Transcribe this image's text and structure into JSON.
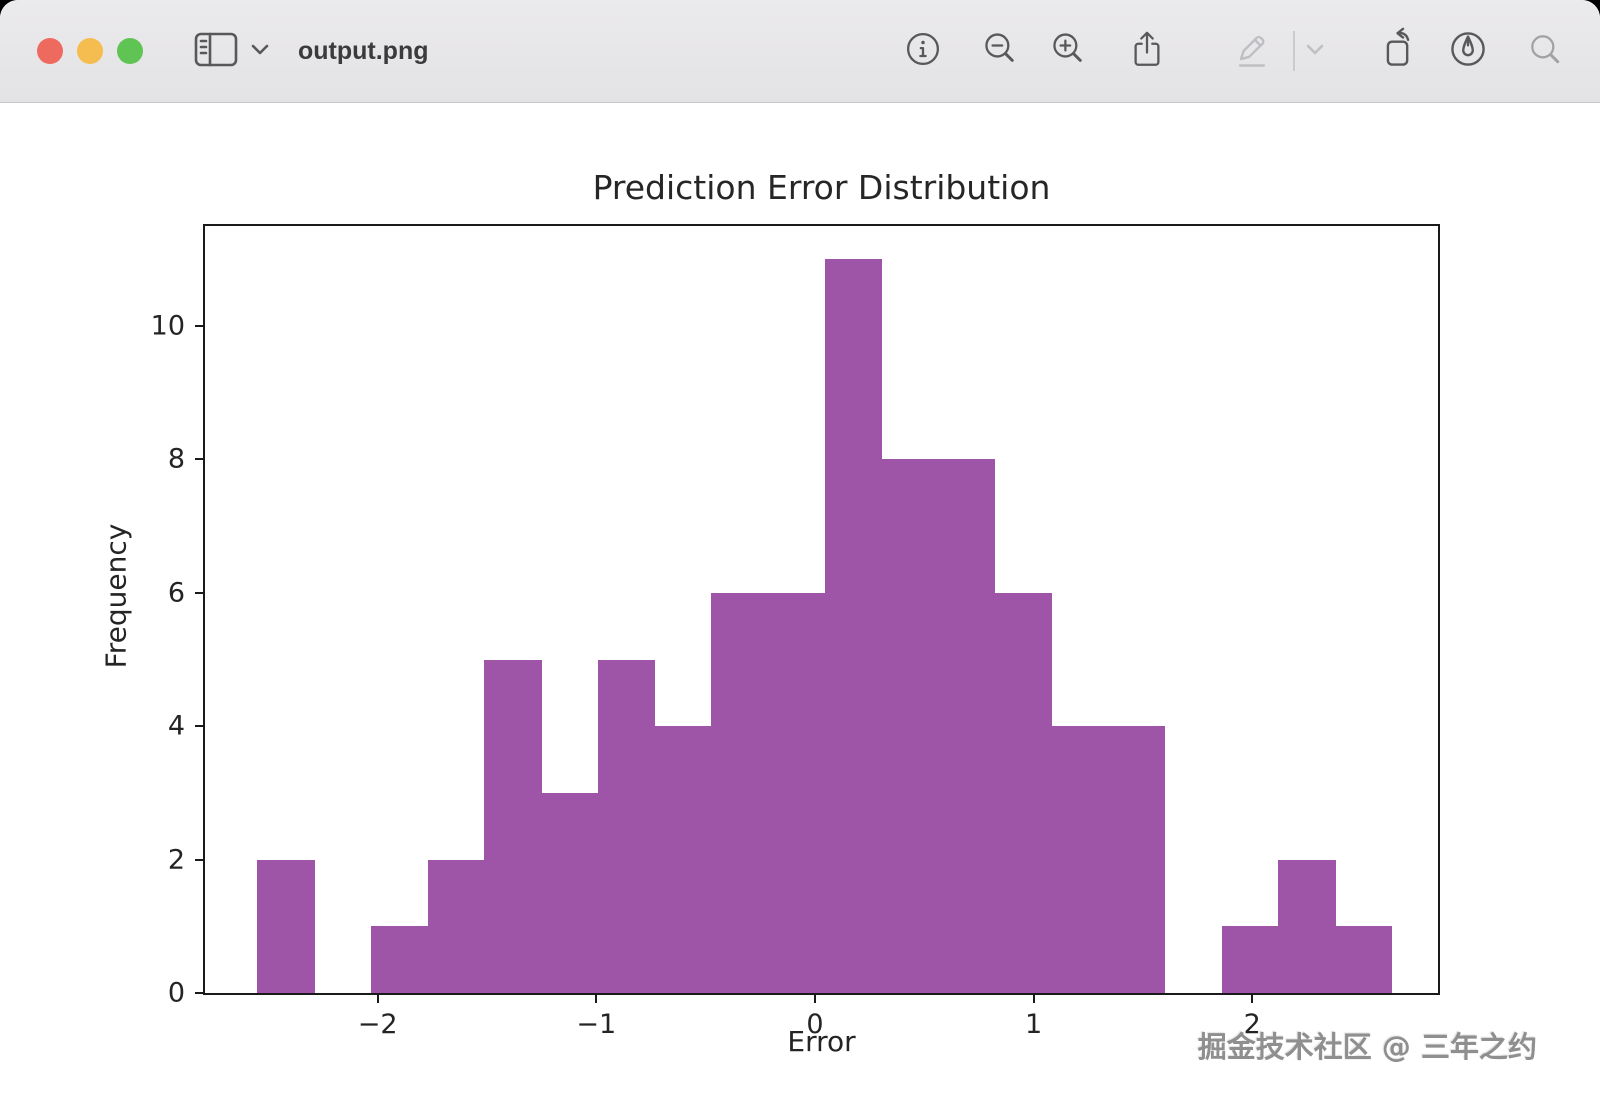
{
  "window": {
    "title": "output.png",
    "traffic_lights": {
      "close": "#ee6a5f",
      "minimize": "#f5bd4f",
      "zoom": "#5fc454"
    },
    "toolbar_icons": [
      "sidebar-icon",
      "chevron-down-icon",
      "info-icon",
      "zoom-out-icon",
      "zoom-in-icon",
      "share-icon",
      "markup-pencil-icon",
      "markup-chevron-icon",
      "rotate-left-icon",
      "markup-pen-icon",
      "search-icon"
    ]
  },
  "chart_data": {
    "type": "bar",
    "subtype": "histogram",
    "title": "Prediction Error Distribution",
    "xlabel": "Error",
    "ylabel": "Frequency",
    "bin_start": -2.55,
    "bin_width": 0.2594,
    "counts": [
      2,
      0,
      1,
      2,
      5,
      3,
      5,
      4,
      6,
      6,
      11,
      8,
      8,
      6,
      4,
      4,
      0,
      1,
      2,
      1
    ],
    "xlim": [
      -2.79,
      2.85
    ],
    "ylim": [
      0,
      11.5
    ],
    "x_ticks": [
      -2,
      -1,
      0,
      1,
      2
    ],
    "x_tick_labels": [
      "−2",
      "−1",
      "0",
      "1",
      "2"
    ],
    "y_ticks": [
      0,
      2,
      4,
      6,
      8,
      10
    ],
    "y_tick_labels": [
      "0",
      "2",
      "4",
      "6",
      "8",
      "10"
    ],
    "bar_color": "#9e55a8",
    "grid": false,
    "legend": false
  },
  "watermark": {
    "text": "掘金技术社区 @ 三年之约"
  }
}
